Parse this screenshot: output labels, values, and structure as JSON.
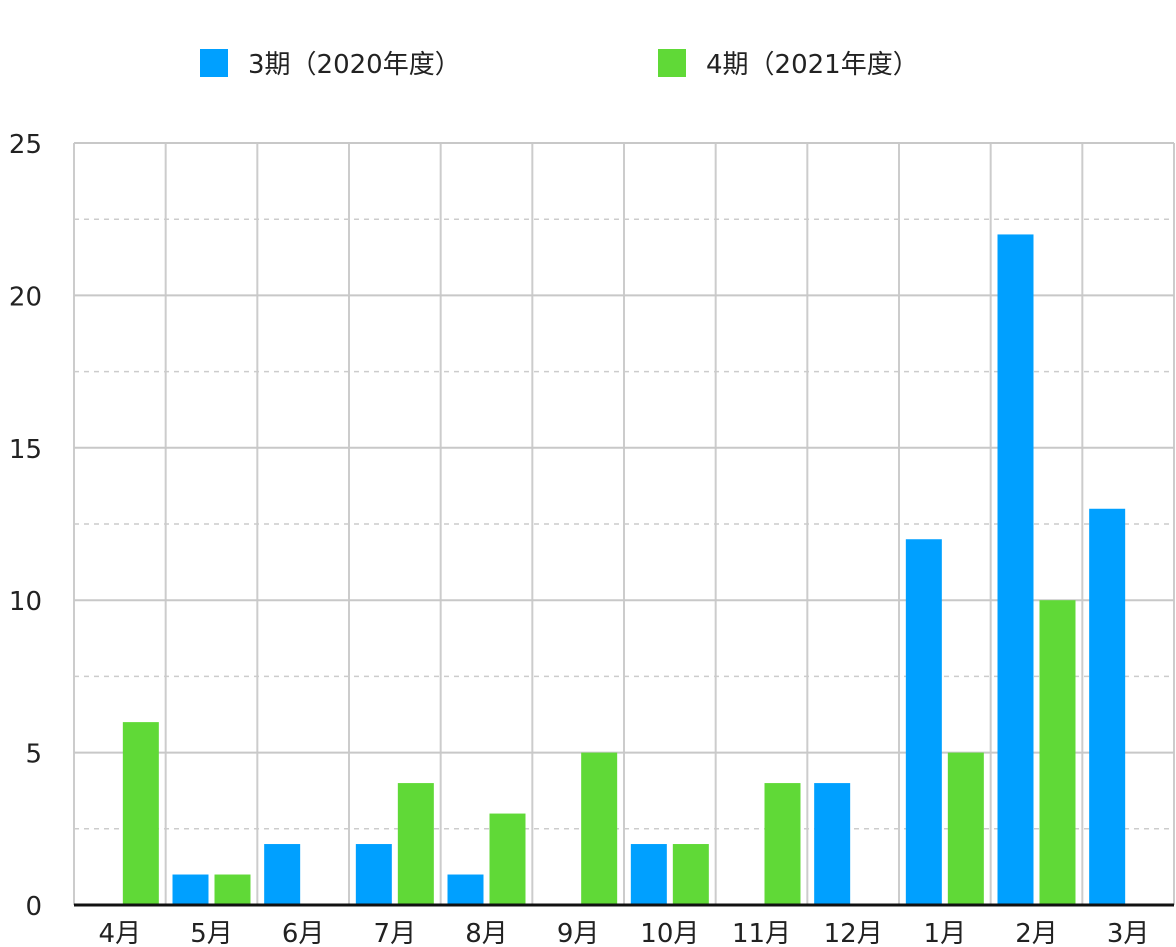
{
  "chart_data": {
    "type": "bar",
    "categories": [
      "4月",
      "5月",
      "6月",
      "7月",
      "8月",
      "9月",
      "10月",
      "11月",
      "12月",
      "1月",
      "2月",
      "3月"
    ],
    "series": [
      {
        "name": "3期（2020年度）",
        "color": "#00a0ff",
        "values": [
          0,
          1,
          2,
          2,
          1,
          0,
          2,
          0,
          4,
          12,
          22,
          13
        ]
      },
      {
        "name": "4期（2021年度）",
        "color": "#60d937",
        "values": [
          6,
          1,
          0,
          4,
          3,
          5,
          2,
          4,
          0,
          5,
          10,
          0
        ]
      }
    ],
    "ylim": [
      0,
      25
    ],
    "yticks": [
      "0",
      "5",
      "10",
      "15",
      "20",
      "25"
    ],
    "ytick_values": [
      0,
      5,
      10,
      15,
      20,
      25
    ],
    "minor_gridlines": true,
    "legend_position": "top",
    "title": "",
    "xlabel": "",
    "ylabel": ""
  }
}
